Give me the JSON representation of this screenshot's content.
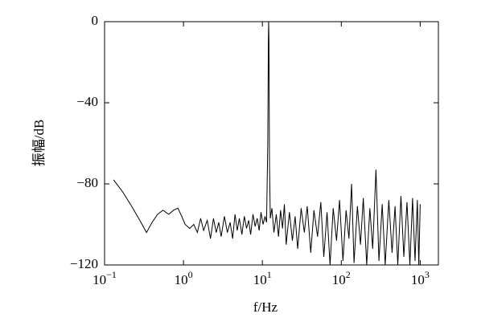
{
  "chart_data": {
    "type": "line",
    "xscale": "log",
    "ylabel": "振幅/dB",
    "xlabel": "f/Hz",
    "color": "#000000",
    "xlim": [
      0.1,
      1700
    ],
    "ylim": [
      -120,
      0
    ],
    "xticks": [
      {
        "value": 0.1,
        "label": "10",
        "exponent": "−1"
      },
      {
        "value": 1,
        "label": "10",
        "exponent": "0"
      },
      {
        "value": 10,
        "label": "10",
        "exponent": "1"
      },
      {
        "value": 100,
        "label": "10",
        "exponent": "2"
      },
      {
        "value": 1000,
        "label": "10",
        "exponent": "3"
      }
    ],
    "yticks": [
      {
        "value": -120,
        "label": "−120"
      },
      {
        "value": -80,
        "label": "−80"
      },
      {
        "value": -40,
        "label": "−40"
      },
      0
    ],
    "x": [
      0.13,
      0.17,
      0.22,
      0.28,
      0.34,
      0.4,
      0.47,
      0.55,
      0.65,
      0.75,
      0.85,
      0.95,
      1.05,
      1.2,
      1.35,
      1.5,
      1.65,
      1.8,
      2.0,
      2.2,
      2.4,
      2.6,
      2.8,
      3.0,
      3.3,
      3.6,
      3.9,
      4.2,
      4.5,
      4.8,
      5.1,
      5.5,
      5.9,
      6.3,
      6.7,
      7.1,
      7.6,
      8.1,
      8.6,
      9.1,
      9.6,
      10.2,
      10.8,
      11.3,
      11.7,
      11.9,
      12.0,
      12.1,
      12.3,
      12.6,
      13.2,
      14,
      15,
      16,
      17,
      18,
      19,
      20,
      22,
      24,
      26,
      28,
      31,
      34,
      37,
      41,
      45,
      50,
      55,
      60,
      66,
      72,
      79,
      87,
      95,
      105,
      115,
      125,
      135,
      145,
      160,
      175,
      190,
      210,
      230,
      250,
      275,
      300,
      330,
      360,
      400,
      440,
      480,
      520,
      570,
      620,
      680,
      740,
      800,
      860,
      920,
      960,
      1000
    ],
    "values": [
      -78,
      -84,
      -91,
      -98,
      -104,
      -99,
      -95,
      -93,
      -95,
      -93,
      -92,
      -96,
      -100,
      -102,
      -100,
      -104,
      -97,
      -103,
      -98,
      -107,
      -97,
      -104,
      -99,
      -106,
      -96,
      -104,
      -99,
      -107,
      -95,
      -103,
      -97,
      -105,
      -96,
      -102,
      -98,
      -105,
      -95,
      -101,
      -97,
      -103,
      -94,
      -100,
      -96,
      -99,
      -60,
      -10,
      0,
      -8,
      -70,
      -97,
      -92,
      -104,
      -95,
      -106,
      -93,
      -102,
      -90,
      -110,
      -94,
      -108,
      -96,
      -112,
      -92,
      -104,
      -91,
      -114,
      -93,
      -106,
      -89,
      -116,
      -94,
      -120,
      -92,
      -108,
      -88,
      -118,
      -93,
      -107,
      -80,
      -119,
      -91,
      -110,
      -87,
      -120,
      -92,
      -112,
      -73,
      -118,
      -90,
      -120,
      -88,
      -114,
      -91,
      -120,
      -86,
      -116,
      -89,
      -120,
      -87,
      -118,
      -88,
      -120,
      -90
    ]
  }
}
